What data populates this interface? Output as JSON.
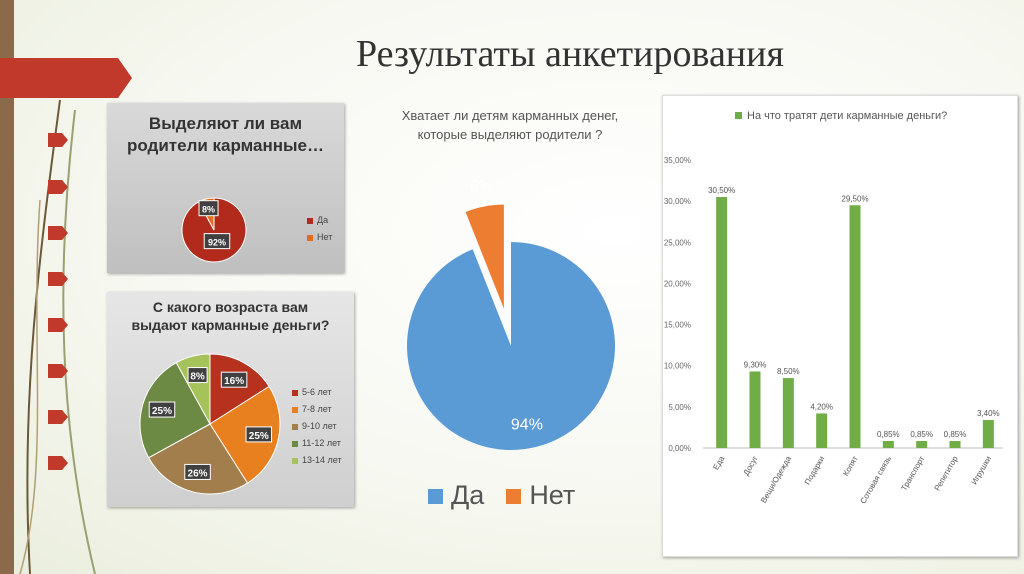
{
  "slide_title": "Результаты анкетирования",
  "colors": {
    "accent": "#c0392b",
    "stem": "#8a6a4a"
  },
  "chart_data": [
    {
      "type": "pie",
      "title": "Выделяют ли вам родители карманные…",
      "categories": [
        "Да",
        "Нет"
      ],
      "values": [
        92,
        8
      ],
      "labels": [
        "92%",
        "8%"
      ],
      "colors": [
        "#b12a1c",
        "#e46c1f"
      ],
      "legend": "right"
    },
    {
      "type": "pie",
      "title": "С какого возраста вам выдают карманные деньги?",
      "categories": [
        "5-6 лет",
        "7-8 лет",
        "9-10 лет",
        "11-12 лет",
        "13-14 лет"
      ],
      "values": [
        16,
        25,
        26,
        25,
        8
      ],
      "labels": [
        "16%",
        "25%",
        "26%",
        "25%",
        "8%"
      ],
      "colors": [
        "#b7311f",
        "#e8801f",
        "#a27e4c",
        "#6d8a44",
        "#a6c25a"
      ],
      "legend": "right"
    },
    {
      "type": "pie",
      "title": "Хватает ли детям карманных денег, которые выделяют родители ?",
      "categories": [
        "Да",
        "Нет"
      ],
      "values": [
        94,
        6
      ],
      "labels": [
        "94%",
        "6%"
      ],
      "colors": [
        "#5b9bd5",
        "#ed7d31"
      ],
      "legend": "bottom"
    },
    {
      "type": "bar",
      "title": "На что тратят дети карманные деньги?",
      "legend": "top",
      "legend_color": "#70ad47",
      "categories": [
        "Еда",
        "Досуг",
        "Вещи/Одежда",
        "Подарки",
        "Копят",
        "Сотовая связь",
        "Транспорт",
        "Репетитор",
        "Игрушки"
      ],
      "values": [
        30.5,
        9.3,
        8.5,
        4.2,
        29.5,
        0.85,
        0.85,
        0.85,
        3.4
      ],
      "value_labels": [
        "30,50%",
        "9,30%",
        "8,50%",
        "4,20%",
        "29,50%",
        "0,85%",
        "0,85%",
        "0,85%",
        "3,40%"
      ],
      "ylim": [
        0,
        35
      ],
      "yticks": [
        "0,00%",
        "5,00%",
        "10,00%",
        "15,00%",
        "20,00%",
        "25,00%",
        "30,00%",
        "35,00%"
      ],
      "grid": false,
      "color": "#70ad47"
    }
  ]
}
